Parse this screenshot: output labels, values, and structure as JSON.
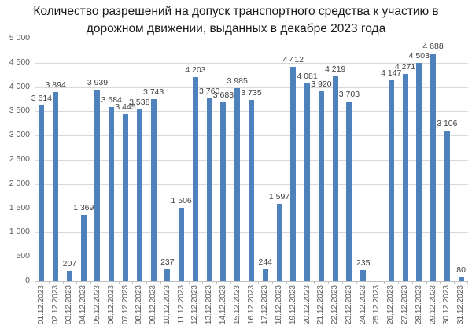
{
  "title_line1": "Количество разрешений на допуск транспортного средства к участию в",
  "title_line2": "дорожном движении, выданных в декабре 2023 года",
  "chart_data": {
    "type": "bar",
    "title": "Количество разрешений на допуск транспортного средства к участию в дорожном движении, выданных в декабре 2023 года",
    "xlabel": "",
    "ylabel": "",
    "ylim": [
      0,
      5000
    ],
    "yticks": [
      "0",
      "500",
      "1 000",
      "1 500",
      "2 000",
      "2 500",
      "3 000",
      "3 500",
      "4 000",
      "4 500",
      "5 000"
    ],
    "grid": true,
    "legend": null,
    "bar_color": "#4f81bd",
    "categories": [
      "01.12.2023",
      "02.12.2023",
      "03.12.2023",
      "04.12.2023",
      "05.12.2023",
      "06.12.2023",
      "07.12.2023",
      "08.12.2023",
      "09.12.2023",
      "10.12.2023",
      "11.12.2023",
      "12.12.2023",
      "13.12.2023",
      "14.12.2023",
      "15.12.2023",
      "16.12.2023",
      "17.12.2023",
      "18.12.2023",
      "19.12.2023",
      "20.12.2023",
      "21.12.2023",
      "22.12.2023",
      "23.12.2023",
      "24.12.2023",
      "25.12.2023",
      "26.12.2023",
      "27.12.2023",
      "28.12.2023",
      "29.12.2023",
      "30.12.2023",
      "31.12.2023"
    ],
    "values": [
      3614,
      3894,
      207,
      1369,
      3939,
      3584,
      3445,
      3538,
      3743,
      237,
      1506,
      4203,
      3760,
      3683,
      3985,
      3735,
      244,
      1597,
      4412,
      4081,
      3920,
      4219,
      3703,
      235,
      null,
      4147,
      4271,
      4503,
      4688,
      3106,
      80
    ],
    "value_labels": [
      "3 614",
      "3 894",
      "207",
      "1 369",
      "3 939",
      "3 584",
      "3 445",
      "3 538",
      "3 743",
      "237",
      "1 506",
      "4 203",
      "3 760",
      "3 683",
      "3 985",
      "3 735",
      "244",
      "1 597",
      "4 412",
      "4 081",
      "3 920",
      "4 219",
      "3 703",
      "235",
      "",
      "4 147",
      "4 271",
      "4 503",
      "4 688",
      "3 106",
      "80"
    ]
  }
}
